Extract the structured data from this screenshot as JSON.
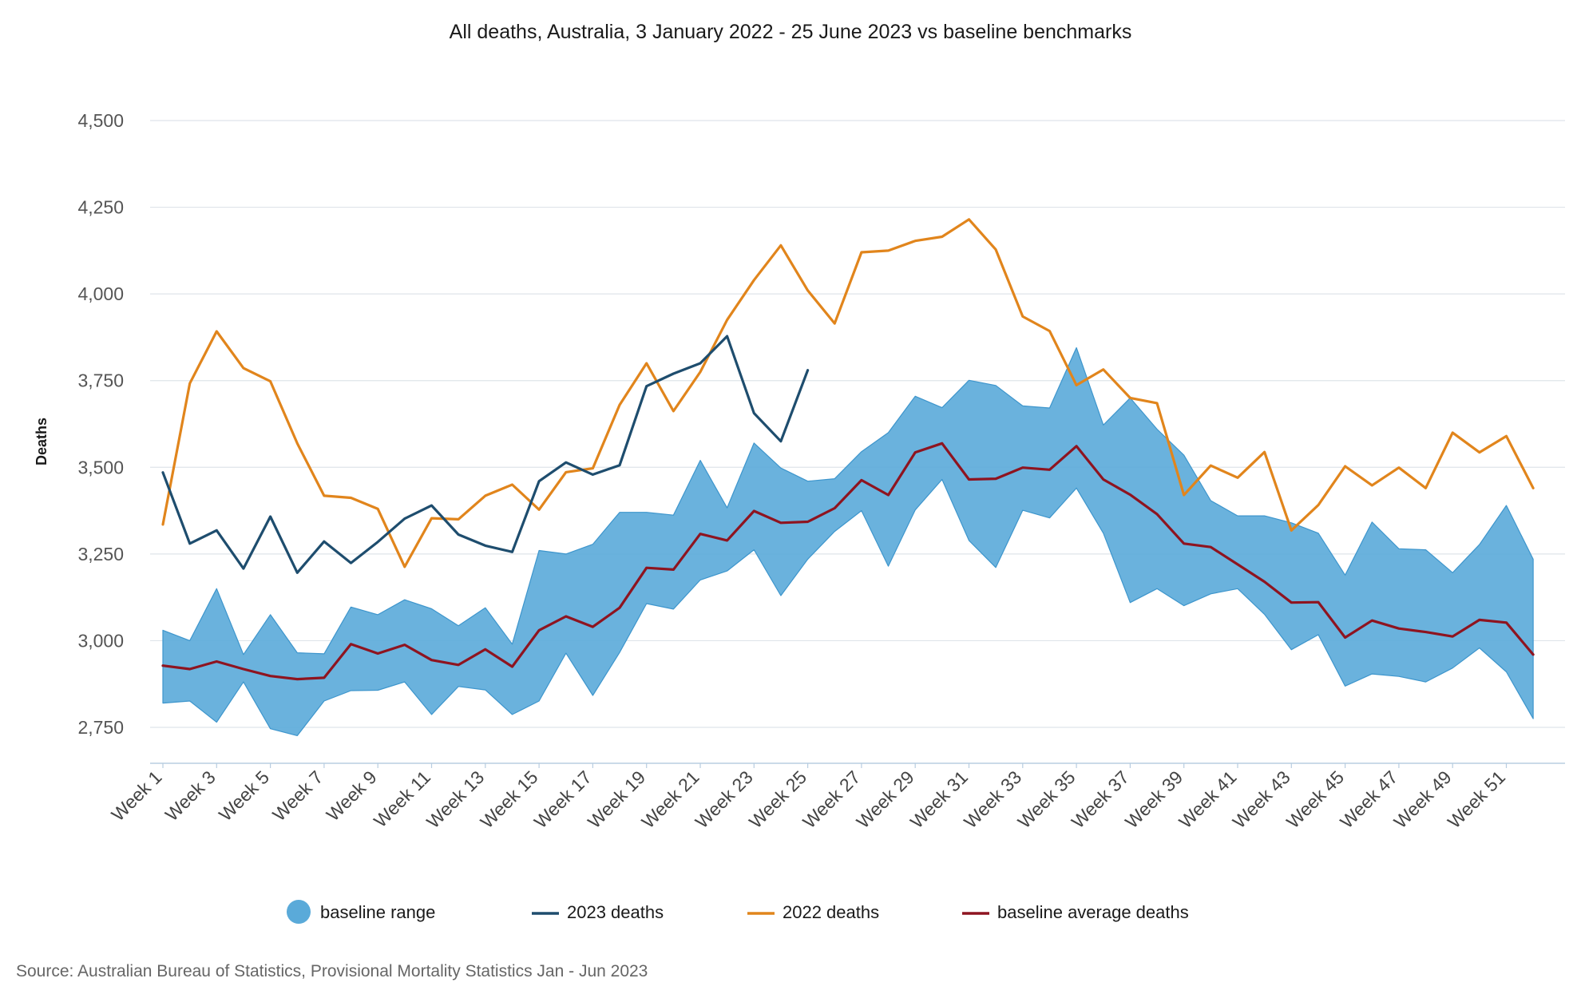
{
  "chart_data": {
    "type": "line",
    "title": "All deaths, Australia, 3 January 2022 - 25 June 2023 vs baseline benchmarks",
    "ylabel": "Deaths",
    "xlabel": "",
    "ylim": [
      2650,
      4500
    ],
    "yticks": [
      2750,
      3000,
      3250,
      3500,
      3750,
      4000,
      4250,
      4500
    ],
    "ytick_labels": [
      "2,750",
      "3,000",
      "3,250",
      "3,500",
      "3,750",
      "4,000",
      "4,250",
      "4,500"
    ],
    "categories": [
      "Week 1",
      "Week 2",
      "Week 3",
      "Week 4",
      "Week 5",
      "Week 6",
      "Week 7",
      "Week 8",
      "Week 9",
      "Week 10",
      "Week 11",
      "Week 12",
      "Week 13",
      "Week 14",
      "Week 15",
      "Week 16",
      "Week 17",
      "Week 18",
      "Week 19",
      "Week 20",
      "Week 21",
      "Week 22",
      "Week 23",
      "Week 24",
      "Week 25",
      "Week 26",
      "Week 27",
      "Week 28",
      "Week 29",
      "Week 30",
      "Week 31",
      "Week 32",
      "Week 33",
      "Week 34",
      "Week 35",
      "Week 36",
      "Week 37",
      "Week 38",
      "Week 39",
      "Week 40",
      "Week 41",
      "Week 42",
      "Week 43",
      "Week 44",
      "Week 45",
      "Week 46",
      "Week 47",
      "Week 48",
      "Week 49",
      "Week 50",
      "Week 51",
      "Week 52"
    ],
    "xtick_every": 2,
    "grid": true,
    "legend_position": "bottom",
    "band": {
      "name": "baseline range",
      "color": "#5aaad9",
      "upper": [
        3030,
        3000,
        3150,
        2960,
        3075,
        2965,
        2962,
        3097,
        3075,
        3118,
        3092,
        3043,
        3095,
        2990,
        3260,
        3250,
        3278,
        3370,
        3370,
        3362,
        3520,
        3383,
        3570,
        3498,
        3460,
        3467,
        3545,
        3600,
        3705,
        3672,
        3751,
        3736,
        3677,
        3671,
        3845,
        3622,
        3700,
        3610,
        3535,
        3404,
        3360,
        3360,
        3340,
        3310,
        3189,
        3342,
        3265,
        3262,
        3196,
        3277,
        3390,
        3235
      ],
      "lower": [
        2820,
        2826,
        2765,
        2881,
        2746,
        2726,
        2826,
        2856,
        2857,
        2881,
        2787,
        2868,
        2858,
        2787,
        2826,
        2964,
        2842,
        2966,
        3107,
        3091,
        3175,
        3201,
        3262,
        3130,
        3235,
        3315,
        3375,
        3215,
        3377,
        3465,
        3289,
        3211,
        3376,
        3354,
        3440,
        3310,
        3110,
        3150,
        3101,
        3135,
        3150,
        3076,
        2974,
        3017,
        2869,
        2904,
        2897,
        2881,
        2921,
        2979,
        2910,
        2775
      ]
    },
    "series": [
      {
        "name": "2023 deaths",
        "color": "#1e4d6e",
        "values": [
          3485,
          3280,
          3318,
          3208,
          3358,
          3196,
          3286,
          3224,
          3285,
          3352,
          3390,
          3306,
          3274,
          3256,
          3460,
          3514,
          3479,
          3506,
          3734,
          3770,
          3800,
          3878,
          3656,
          3575,
          3780,
          null,
          null,
          null,
          null,
          null,
          null,
          null,
          null,
          null,
          null,
          null,
          null,
          null,
          null,
          null,
          null,
          null,
          null,
          null,
          null,
          null,
          null,
          null,
          null,
          null,
          null,
          null
        ]
      },
      {
        "name": "2022 deaths",
        "color": "#e1851c",
        "values": [
          3335,
          3742,
          3892,
          3786,
          3748,
          3569,
          3418,
          3412,
          3380,
          3213,
          3353,
          3350,
          3418,
          3450,
          3378,
          3486,
          3497,
          3680,
          3800,
          3662,
          3775,
          3925,
          4040,
          4140,
          4010,
          3915,
          4120,
          4125,
          4153,
          4165,
          4215,
          4128,
          3935,
          3893,
          3737,
          3782,
          3700,
          3685,
          3420,
          3505,
          3470,
          3544,
          3318,
          3391,
          3503,
          3448,
          3499,
          3440,
          3600,
          3543,
          3590,
          3440
        ]
      },
      {
        "name": "baseline average deaths",
        "color": "#8e1420",
        "values": [
          2928,
          2918,
          2940,
          2918,
          2898,
          2889,
          2893,
          2990,
          2963,
          2988,
          2944,
          2930,
          2975,
          2925,
          3030,
          3070,
          3040,
          3095,
          3210,
          3205,
          3308,
          3289,
          3374,
          3340,
          3343,
          3382,
          3463,
          3420,
          3543,
          3569,
          3465,
          3467,
          3499,
          3493,
          3561,
          3465,
          3421,
          3365,
          3280,
          3270,
          3220,
          3170,
          3110,
          3111,
          3009,
          3058,
          3035,
          3025,
          3012,
          3060,
          3052,
          2960
        ]
      }
    ],
    "legend": [
      "baseline range",
      "2023 deaths",
      "2022 deaths",
      "baseline average deaths"
    ]
  },
  "footer": {
    "source": "Source: Australian Bureau of Statistics, Provisional Mortality Statistics Jan - Jun 2023"
  }
}
